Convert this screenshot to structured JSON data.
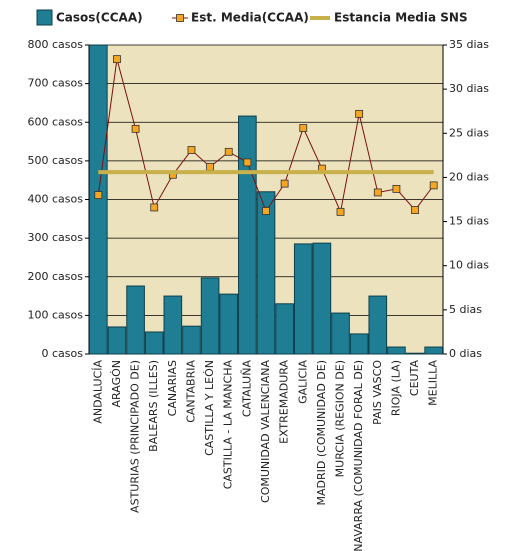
{
  "chart_data": {
    "type": "bar-line",
    "categories": [
      "ANDALUCÍA",
      "ARAGÓN",
      "ASTURIAS (PRINCIPADO DE)",
      "BALEARS (ILLES)",
      "CANARIAS",
      "CANTABRIA",
      "CASTILLA Y LEÓN",
      "CASTILLA - LA MANCHA",
      "CATALUÑA",
      "COMUNIDAD VALENCIANA",
      "EXTREMADURA",
      "GALICIA",
      "MADRID (COMUNIDAD DE)",
      "MURCIA (REGION DE)",
      "NAVARRA (COMUNIDAD FORAL DE)",
      "PAIS VASCO",
      "RIOJA (LA)",
      "CEUTA",
      "MELILLA"
    ],
    "series": [
      {
        "name": "Casos(CCAA)",
        "type": "bar",
        "color": "#1f7e94",
        "values": [
          800,
          70,
          176,
          57,
          150,
          72,
          197,
          155,
          616,
          420,
          130,
          285,
          287,
          106,
          52,
          150,
          18,
          2,
          18
        ]
      },
      {
        "name": "Est. Media(CCAA)",
        "type": "line",
        "axis": "y2",
        "color": "#7a1010",
        "marker_color": "#f5a623",
        "values": [
          18.0,
          33.4,
          25.5,
          16.6,
          20.3,
          23.1,
          21.2,
          22.9,
          21.7,
          16.2,
          19.3,
          25.6,
          21.0,
          16.1,
          27.2,
          18.3,
          18.7,
          16.3,
          19.1
        ]
      },
      {
        "name": "Estancia Media SNS",
        "type": "reference",
        "axis": "y2",
        "color": "#c8b04a",
        "value": 20.6
      }
    ],
    "ylim": [
      0,
      800
    ],
    "yticks": [
      {
        "value": 0,
        "label": "0 casos"
      },
      {
        "value": 100,
        "label": "100 casos"
      },
      {
        "value": 200,
        "label": "200 casos"
      },
      {
        "value": 300,
        "label": "300 casos"
      },
      {
        "value": 400,
        "label": "400 casos"
      },
      {
        "value": 500,
        "label": "500 casos"
      },
      {
        "value": 600,
        "label": "600 casos"
      },
      {
        "value": 700,
        "label": "700 casos"
      },
      {
        "value": 800,
        "label": "800 casos"
      }
    ],
    "y2lim": [
      0,
      35
    ],
    "y2ticks": [
      {
        "value": 0,
        "label": "0 dias"
      },
      {
        "value": 5,
        "label": "5 dias"
      },
      {
        "value": 10,
        "label": "10 dias"
      },
      {
        "value": 15,
        "label": "15 dias"
      },
      {
        "value": 20,
        "label": "20 dias"
      },
      {
        "value": 25,
        "label": "25 dias"
      },
      {
        "value": 30,
        "label": "30 dias"
      },
      {
        "value": 35,
        "label": "35 dias"
      }
    ],
    "grid": true,
    "background": "#ece2bd",
    "legend": "top"
  }
}
